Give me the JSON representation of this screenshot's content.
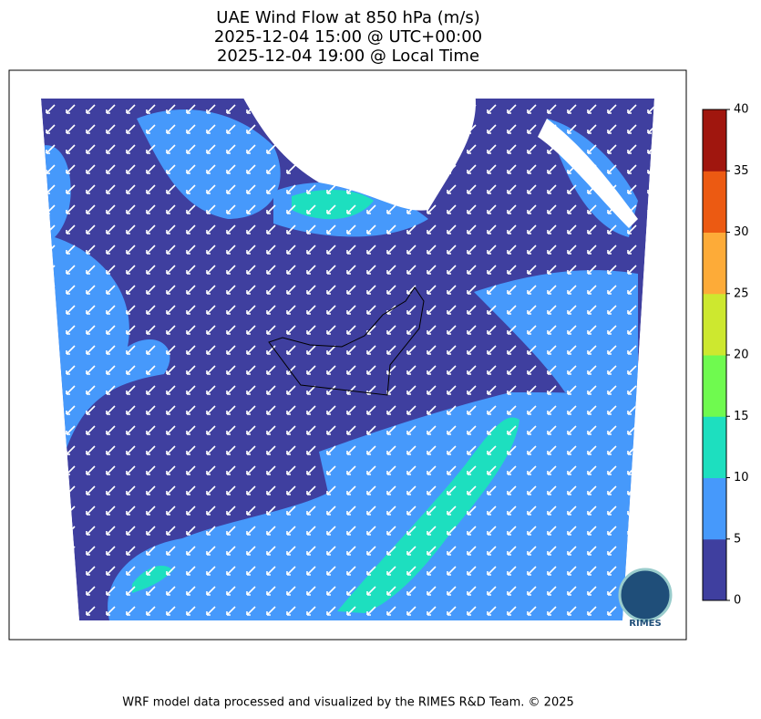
{
  "title": [
    "UAE Wind Flow at 850 hPa (m/s)",
    "2025-12-04 15:00 @ UTC+00:00",
    "2025-12-04 19:00 @ Local Time"
  ],
  "colorbar": {
    "ticks": [
      0,
      5,
      10,
      15,
      20,
      25,
      30,
      35,
      40
    ],
    "colors": [
      "#3f3f9f",
      "#4699fb",
      "#1ddfbf",
      "#6ffa4f",
      "#cde82f",
      "#fdab38",
      "#ec5a12",
      "#a0160e"
    ]
  },
  "logo": "RIMES",
  "footer": "WRF model data processed and visualized by the RIMES R&D Team. © 2025"
}
